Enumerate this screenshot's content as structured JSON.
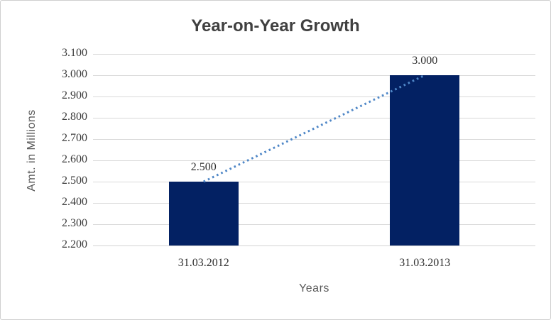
{
  "chart": {
    "title": "Year-on-Year Growth",
    "y_axis_title": "Amt. in Millions",
    "x_axis_title": "Years"
  },
  "chart_data": {
    "type": "bar",
    "title": "Year-on-Year Growth",
    "xlabel": "Years",
    "ylabel": "Amt. in Millions",
    "categories": [
      "31.03.2012",
      "31.03.2013"
    ],
    "values": [
      2.5,
      3.0
    ],
    "data_labels": [
      "2.500",
      "3.000"
    ],
    "y_ticks": [
      "3.100",
      "3.000",
      "2.900",
      "2.800",
      "2.700",
      "2.600",
      "2.500",
      "2.400",
      "2.300",
      "2.200"
    ],
    "ylim": [
      2.2,
      3.1
    ],
    "grid": true,
    "legend_position": "none",
    "trendline": {
      "style": "dotted",
      "points": [
        2.5,
        3.0
      ]
    },
    "colors": {
      "bar": "#032163",
      "gridline": "#d9d9d9",
      "trendline": "#4f87c7",
      "title": "#404040",
      "axis_title": "#595959",
      "tick_label": "#3a3a3a",
      "border": "#cfcfcf",
      "background": "#ffffff"
    }
  }
}
